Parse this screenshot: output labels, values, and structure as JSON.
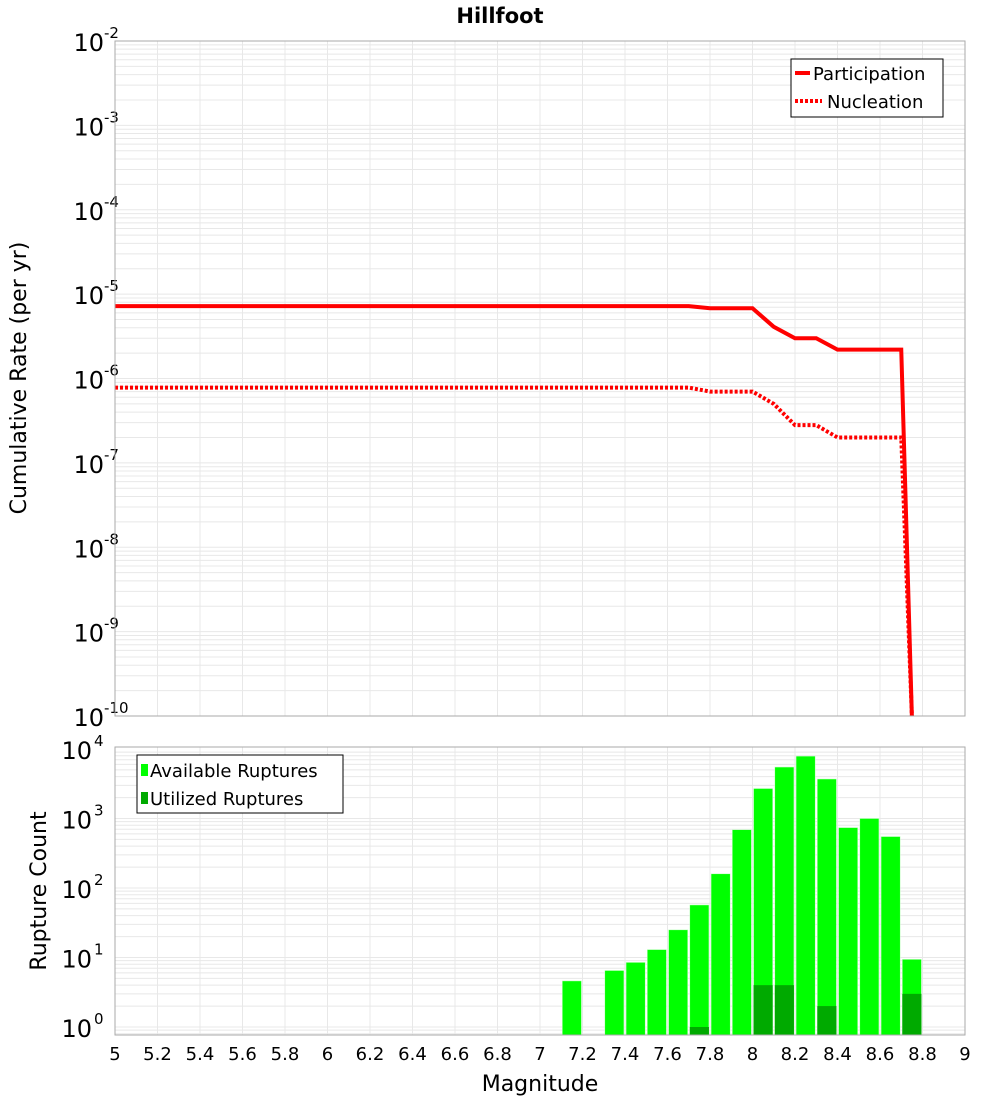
{
  "chart_data": [
    {
      "type": "line",
      "title": "Hillfoot",
      "xlabel": "Magnitude",
      "ylabel": "Cumulative Rate (per yr)",
      "yscale": "log",
      "xlim": [
        5,
        9
      ],
      "ylim": [
        1e-10,
        0.01
      ],
      "ytick_exponents": [
        "-2",
        "-3",
        "-4",
        "-5",
        "-6",
        "-7",
        "-8",
        "-9",
        "-10"
      ],
      "grid": true,
      "legend_position": "top-right",
      "series": [
        {
          "name": "Participation",
          "style": "solid",
          "color": "#ff0000",
          "x": [
            5,
            7.7,
            7.8,
            8.0,
            8.1,
            8.2,
            8.3,
            8.4,
            8.7,
            8.75
          ],
          "y": [
            7.2e-06,
            7.2e-06,
            6.8e-06,
            6.8e-06,
            4.1e-06,
            3e-06,
            3e-06,
            2.2e-06,
            2.2e-06,
            1e-10
          ]
        },
        {
          "name": "Nucleation",
          "style": "dotted",
          "color": "#ff0000",
          "x": [
            5,
            7.7,
            7.8,
            8.0,
            8.1,
            8.2,
            8.3,
            8.4,
            8.7,
            8.75
          ],
          "y": [
            7.8e-07,
            7.8e-07,
            7e-07,
            7e-07,
            5e-07,
            2.8e-07,
            2.8e-07,
            2e-07,
            2e-07,
            1e-10
          ]
        }
      ]
    },
    {
      "type": "bar",
      "xlabel": "Magnitude",
      "ylabel": "Rupture Count",
      "yscale": "log",
      "xlim": [
        5,
        9
      ],
      "ylim": [
        0.72,
        10000.0
      ],
      "xticks": [
        "5",
        "5.2",
        "5.4",
        "5.6",
        "5.8",
        "6",
        "6.2",
        "6.4",
        "6.6",
        "6.8",
        "7",
        "7.2",
        "7.4",
        "7.6",
        "7.8",
        "8",
        "8.2",
        "8.4",
        "8.6",
        "8.8",
        "9"
      ],
      "ytick_exponents": [
        "0",
        "1",
        "2",
        "3",
        "4"
      ],
      "legend_position": "top-left",
      "series": [
        {
          "name": "Available Ruptures",
          "color": "#00ff00",
          "x": [
            7.15,
            7.35,
            7.45,
            7.55,
            7.65,
            7.75,
            7.85,
            7.95,
            8.05,
            8.15,
            8.25,
            8.35,
            8.45,
            8.55,
            8.65,
            8.75
          ],
          "values": [
            4.6,
            6.5,
            8.5,
            13,
            25,
            57,
            160,
            690,
            2700,
            5500,
            7900,
            3700,
            740,
            1000,
            550,
            9.4
          ]
        },
        {
          "name": "Utilized Ruptures",
          "color": "#00aa00",
          "x": [
            7.75,
            8.05,
            8.15,
            8.35,
            8.75
          ],
          "values": [
            1,
            4,
            4,
            2,
            3
          ]
        }
      ]
    }
  ]
}
